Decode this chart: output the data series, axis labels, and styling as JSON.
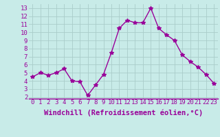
{
  "x": [
    0,
    1,
    2,
    3,
    4,
    5,
    6,
    7,
    8,
    9,
    10,
    11,
    12,
    13,
    14,
    15,
    16,
    17,
    18,
    19,
    20,
    21,
    22,
    23
  ],
  "y": [
    4.5,
    5.0,
    4.7,
    5.0,
    5.5,
    4.0,
    3.9,
    2.2,
    3.5,
    4.8,
    7.5,
    10.5,
    11.5,
    11.2,
    11.2,
    13.0,
    10.5,
    9.7,
    9.0,
    7.2,
    6.4,
    5.7,
    4.8,
    3.7
  ],
  "line_color": "#990099",
  "marker": "*",
  "marker_size": 4,
  "bg_color": "#c8ebe8",
  "grid_color": "#aaccca",
  "xlabel": "Windchill (Refroidissement éolien,°C)",
  "yticks": [
    2,
    3,
    4,
    5,
    6,
    7,
    8,
    9,
    10,
    11,
    12,
    13
  ],
  "xticks": [
    0,
    1,
    2,
    3,
    4,
    5,
    6,
    7,
    8,
    9,
    10,
    11,
    12,
    13,
    14,
    15,
    16,
    17,
    18,
    19,
    20,
    21,
    22,
    23
  ],
  "xlim": [
    -0.5,
    23.5
  ],
  "ylim": [
    1.8,
    13.5
  ],
  "xlabel_color": "#990099",
  "tick_color": "#990099",
  "tick_fontsize": 6.5,
  "xlabel_fontsize": 7.5
}
